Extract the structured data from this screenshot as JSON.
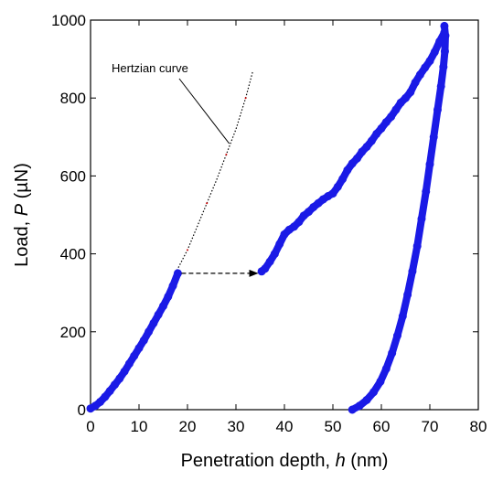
{
  "chart_data": {
    "type": "line",
    "xlabel": {
      "text": "Penetration depth, ",
      "var": "h",
      "unit": " (nm)"
    },
    "ylabel": {
      "text": "Load, ",
      "var": "P",
      "unit": " (µN)"
    },
    "xlim": [
      0,
      80
    ],
    "ylim": [
      0,
      1000
    ],
    "xticks": [
      0,
      10,
      20,
      30,
      40,
      50,
      60,
      70,
      80
    ],
    "yticks": [
      0,
      200,
      400,
      600,
      800,
      1000
    ],
    "grid": false,
    "colors": {
      "data": "#1a1ae6",
      "annotation": "#000000",
      "hertz_points": "#cc0000"
    },
    "series": [
      {
        "style": "thick-markers",
        "segments": [
          {
            "x": [
              0,
              1,
              2,
              3,
              4,
              5,
              6,
              7,
              8,
              9,
              10,
              11,
              12,
              13,
              14,
              15,
              16,
              17,
              18
            ],
            "y": [
              3,
              10,
              20,
              33,
              48,
              64,
              80,
              98,
              118,
              138,
              158,
              178,
              200,
              222,
              244,
              266,
              290,
              318,
              350
            ]
          },
          {
            "x": [
              35.3,
              36,
              37,
              38,
              39,
              40,
              41,
              42,
              43,
              44,
              45,
              46,
              47,
              48,
              49,
              50,
              51,
              52,
              53,
              54,
              55,
              56,
              57,
              58,
              59,
              60,
              61,
              62,
              63,
              64,
              65,
              66,
              67,
              68,
              69,
              70,
              71,
              72,
              73
            ],
            "y": [
              355,
              362,
              380,
              400,
              425,
              450,
              462,
              470,
              482,
              498,
              508,
              520,
              530,
              540,
              548,
              555,
              572,
              592,
              615,
              632,
              645,
              662,
              675,
              690,
              708,
              722,
              738,
              752,
              770,
              788,
              800,
              815,
              840,
              860,
              878,
              895,
              918,
              945,
              968
            ]
          },
          {
            "x": [
              73,
              73.2,
              73.1,
              72.8,
              72.3,
              71.6,
              70.8,
              70,
              69.2,
              68.3,
              67.4,
              66.4,
              65.4,
              64.4,
              63.3,
              62.2,
              61,
              59.8,
              58.4,
              57,
              55.5,
              54
            ],
            "y": [
              985,
              960,
              920,
              880,
              830,
              770,
              700,
              630,
              560,
              490,
              420,
              355,
              295,
              240,
              190,
              145,
              105,
              72,
              45,
              25,
              10,
              0
            ]
          }
        ]
      },
      {
        "style": "dotted",
        "x": [
          17.5,
          20,
          22,
          24,
          26,
          28,
          30,
          32,
          33.5
        ],
        "y": [
          350,
          410,
          470,
          530,
          590,
          655,
          720,
          800,
          870
        ]
      }
    ],
    "arrow": {
      "from": {
        "x": 18,
        "y": 350
      },
      "to": {
        "x": 35,
        "y": 350
      }
    },
    "annotations": [
      {
        "text": "Hertzian curve",
        "target": {
          "x": 29,
          "y": 690
        }
      }
    ]
  }
}
